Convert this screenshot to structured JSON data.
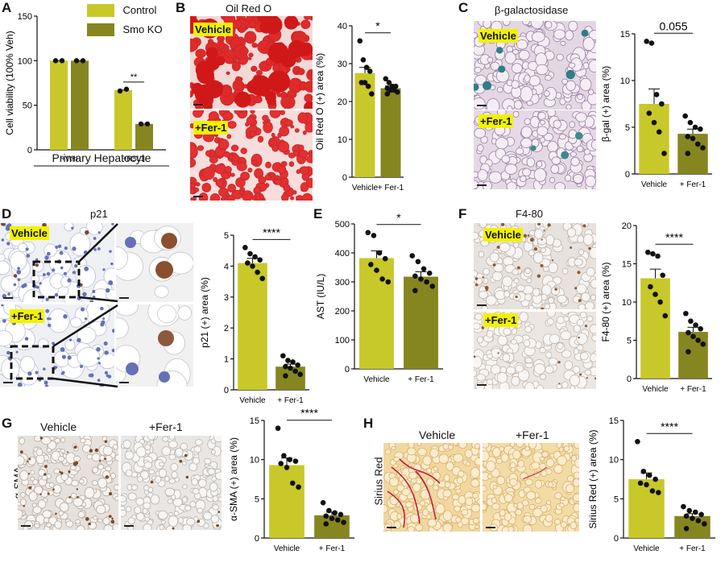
{
  "colors": {
    "control": "#c8c82a",
    "ko": "#868621",
    "badge": "#f2f200"
  },
  "panel_letters": [
    "A",
    "B",
    "C",
    "D",
    "E",
    "F",
    "G",
    "H"
  ],
  "panelA": {
    "legend": [
      "Control",
      "Smo KO"
    ],
    "group_labels": [
      "+Veh",
      "+RSL3"
    ],
    "xtitle": "Primary Hepatocyte"
  },
  "panelB": {
    "title": "Oil Red O",
    "badges": [
      "Vehicle",
      "+Fer-1"
    ]
  },
  "panelC": {
    "title": "β-galactosidase",
    "badges": [
      "Vehicle",
      "+Fer-1"
    ]
  },
  "panelD": {
    "title": "p21",
    "badges": [
      "Vehicle",
      "+Fer-1"
    ]
  },
  "panelF": {
    "title": "F4-80",
    "badges": [
      "Vehicle",
      "+Fer-1"
    ]
  },
  "panelG": {
    "col_labels": [
      "Vehicle",
      "+Fer-1"
    ],
    "side_label": "α-SMA"
  },
  "panelH": {
    "col_labels": [
      "Vehicle",
      "+Fer-1"
    ],
    "side_label": "Sirius Red"
  },
  "chart_data": [
    {
      "id": "A",
      "type": "bar",
      "ylabel": "Cell viability (100% Veh)",
      "categories": [
        "+Veh",
        "+RSL3"
      ],
      "series": [
        {
          "name": "Control",
          "values": [
            100,
            67
          ],
          "points": [
            [
              100,
              100
            ],
            [
              66,
              68
            ]
          ]
        },
        {
          "name": "Smo KO",
          "values": [
            100,
            29
          ],
          "points": [
            [
              100,
              100
            ],
            [
              29,
              29
            ]
          ]
        }
      ],
      "ylim": [
        0,
        150
      ],
      "yticks": [
        0,
        50,
        100,
        150
      ],
      "annotations": [
        "**"
      ]
    },
    {
      "id": "B",
      "type": "bar",
      "ylabel": "Oil Red O (+) area (%)",
      "categories": [
        "Vehicle",
        "+ Fer-1"
      ],
      "values": [
        27.5,
        23.5
      ],
      "sem": [
        1.5,
        0.6
      ],
      "points": [
        [
          36,
          31,
          29,
          28,
          25,
          25,
          24,
          22
        ],
        [
          26,
          25,
          24,
          24,
          23.5,
          23,
          23,
          22.5,
          22
        ]
      ],
      "ylim": [
        0,
        40
      ],
      "yticks": [
        0,
        10,
        20,
        30,
        40
      ],
      "annotations": [
        "*"
      ]
    },
    {
      "id": "C",
      "type": "bar",
      "ylabel": "β-gal (+) area (%)",
      "categories": [
        "Vehicle",
        "+ Fer-1"
      ],
      "values": [
        7.5,
        4.3
      ],
      "sem": [
        1.6,
        0.5
      ],
      "points": [
        [
          14.2,
          14,
          8.5,
          7.5,
          6.5,
          5.5,
          4.5,
          2.2
        ],
        [
          6.2,
          5.5,
          5,
          4.8,
          4,
          3.8,
          3.2,
          2.8,
          2.2
        ]
      ],
      "ylim": [
        0,
        15
      ],
      "yticks": [
        0,
        5,
        10,
        15
      ],
      "annotations": [
        "0.055"
      ]
    },
    {
      "id": "D",
      "type": "bar",
      "ylabel": "p21 (+) area (%)",
      "categories": [
        "Vehicle",
        "+ Fer-1"
      ],
      "values": [
        4.1,
        0.75
      ],
      "sem": [
        0.15,
        0.08
      ],
      "points": [
        [
          4.6,
          4.4,
          4.3,
          4.2,
          4.1,
          4.0,
          3.8,
          3.6
        ],
        [
          1.1,
          0.95,
          0.9,
          0.8,
          0.75,
          0.7,
          0.6,
          0.5,
          0.45
        ]
      ],
      "ylim": [
        0,
        5
      ],
      "yticks": [
        0,
        1,
        2,
        3,
        4,
        5
      ],
      "annotations": [
        "****"
      ]
    },
    {
      "id": "E",
      "type": "bar",
      "ylabel": "AST (IU/L)",
      "categories": [
        "Vehicle",
        "+ Fer-1"
      ],
      "values": [
        382,
        318
      ],
      "sem": [
        25,
        17
      ],
      "points": [
        [
          470,
          460,
          400,
          380,
          360,
          340,
          310,
          300
        ],
        [
          390,
          370,
          345,
          330,
          320,
          310,
          300,
          285,
          270
        ]
      ],
      "ylim": [
        0,
        500
      ],
      "yticks": [
        0,
        100,
        200,
        300,
        400,
        500
      ],
      "annotations": [
        "*"
      ]
    },
    {
      "id": "F",
      "type": "bar",
      "ylabel": "F4-80 (+) area (%)",
      "categories": [
        "Vehicle",
        "+ Fer-1"
      ],
      "values": [
        13.1,
        6.1
      ],
      "sem": [
        1.2,
        0.6
      ],
      "points": [
        [
          16.5,
          16.3,
          16,
          13.5,
          12,
          11,
          10,
          8.2
        ],
        [
          8.5,
          7.5,
          7,
          6.5,
          6,
          5.5,
          5,
          4.5,
          3.5
        ]
      ],
      "ylim": [
        0,
        20
      ],
      "yticks": [
        0,
        5,
        10,
        15,
        20
      ],
      "annotations": [
        "****"
      ]
    },
    {
      "id": "G",
      "type": "bar",
      "ylabel": "α-SMA (+) area (%)",
      "categories": [
        "Vehicle",
        "+ Fer-1"
      ],
      "values": [
        9.3,
        2.9
      ],
      "sem": [
        0.9,
        0.4
      ],
      "points": [
        [
          14,
          10.5,
          10,
          9.8,
          9.5,
          9,
          7,
          6.5
        ],
        [
          4.5,
          3.5,
          3.2,
          3,
          2.8,
          2.5,
          2.3,
          2,
          1.8
        ]
      ],
      "ylim": [
        0,
        15
      ],
      "yticks": [
        0,
        5,
        10,
        15
      ],
      "annotations": [
        "****"
      ]
    },
    {
      "id": "H",
      "type": "bar",
      "ylabel": "Sirius Red (+) area (%)",
      "categories": [
        "Vehicle",
        "+ Fer-1"
      ],
      "values": [
        7.5,
        2.8
      ],
      "sem": [
        0.8,
        0.3
      ],
      "points": [
        [
          12.3,
          8.5,
          8,
          7.5,
          7,
          6.8,
          6,
          5.8
        ],
        [
          4,
          3.5,
          3.3,
          3,
          2.8,
          2.5,
          2.2,
          1.8,
          1.2
        ]
      ],
      "ylim": [
        0,
        15
      ],
      "yticks": [
        0,
        5,
        10,
        15
      ],
      "annotations": [
        "****"
      ]
    }
  ]
}
